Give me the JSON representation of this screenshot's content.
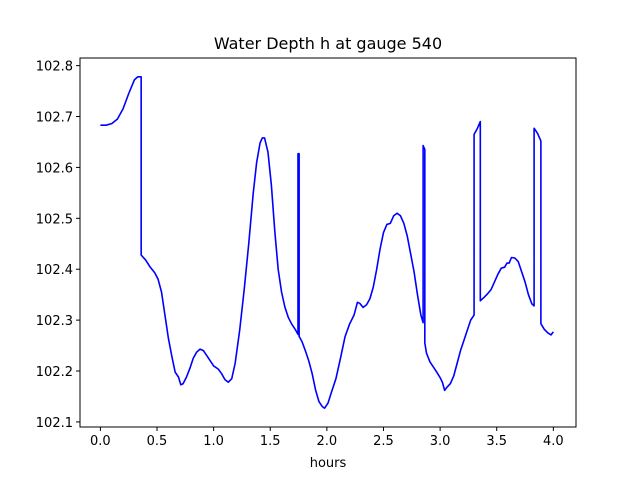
{
  "chart_data": {
    "type": "line",
    "title": "Water Depth h at gauge 540",
    "xlabel": "hours",
    "ylabel": "",
    "xlim": [
      -0.18,
      4.2
    ],
    "ylim": [
      102.09,
      102.815
    ],
    "x_ticks": [
      0.0,
      0.5,
      1.0,
      1.5,
      2.0,
      2.5,
      3.0,
      3.5,
      4.0
    ],
    "x_tick_labels": [
      "0.0",
      "0.5",
      "1.0",
      "1.5",
      "2.0",
      "2.5",
      "3.0",
      "3.5",
      "4.0"
    ],
    "y_ticks": [
      102.1,
      102.2,
      102.3,
      102.4,
      102.5,
      102.6,
      102.7,
      102.8
    ],
    "y_tick_labels": [
      "102.1",
      "102.2",
      "102.3",
      "102.4",
      "102.5",
      "102.6",
      "102.7",
      "102.8"
    ],
    "grid": false,
    "series": [
      {
        "color": "#0000ff",
        "points": [
          [
            0.0,
            102.683
          ],
          [
            0.05,
            102.683
          ],
          [
            0.1,
            102.686
          ],
          [
            0.15,
            102.695
          ],
          [
            0.2,
            102.715
          ],
          [
            0.25,
            102.745
          ],
          [
            0.3,
            102.772
          ],
          [
            0.33,
            102.778
          ],
          [
            0.36,
            102.778
          ],
          [
            0.36,
            102.428
          ],
          [
            0.4,
            102.418
          ],
          [
            0.44,
            102.404
          ],
          [
            0.48,
            102.393
          ],
          [
            0.51,
            102.38
          ],
          [
            0.54,
            102.355
          ],
          [
            0.57,
            102.31
          ],
          [
            0.6,
            102.265
          ],
          [
            0.63,
            102.23
          ],
          [
            0.66,
            102.198
          ],
          [
            0.69,
            102.188
          ],
          [
            0.71,
            102.173
          ],
          [
            0.73,
            102.175
          ],
          [
            0.76,
            102.188
          ],
          [
            0.79,
            102.205
          ],
          [
            0.82,
            102.225
          ],
          [
            0.85,
            102.237
          ],
          [
            0.88,
            102.243
          ],
          [
            0.91,
            102.24
          ],
          [
            0.94,
            102.23
          ],
          [
            0.97,
            102.22
          ],
          [
            1.0,
            102.21
          ],
          [
            1.04,
            102.204
          ],
          [
            1.07,
            102.195
          ],
          [
            1.1,
            102.183
          ],
          [
            1.13,
            102.178
          ],
          [
            1.16,
            102.185
          ],
          [
            1.19,
            102.215
          ],
          [
            1.23,
            102.28
          ],
          [
            1.27,
            102.36
          ],
          [
            1.31,
            102.45
          ],
          [
            1.35,
            102.55
          ],
          [
            1.38,
            102.61
          ],
          [
            1.41,
            102.648
          ],
          [
            1.43,
            102.658
          ],
          [
            1.45,
            102.658
          ],
          [
            1.48,
            102.63
          ],
          [
            1.51,
            102.565
          ],
          [
            1.54,
            102.475
          ],
          [
            1.57,
            102.4
          ],
          [
            1.6,
            102.355
          ],
          [
            1.63,
            102.325
          ],
          [
            1.66,
            102.305
          ],
          [
            1.69,
            102.292
          ],
          [
            1.72,
            102.282
          ],
          [
            1.745,
            102.272
          ],
          [
            1.745,
            102.627
          ],
          [
            1.755,
            102.627
          ],
          [
            1.755,
            102.268
          ],
          [
            1.78,
            102.258
          ],
          [
            1.81,
            102.24
          ],
          [
            1.84,
            102.22
          ],
          [
            1.87,
            102.195
          ],
          [
            1.9,
            102.163
          ],
          [
            1.93,
            102.14
          ],
          [
            1.96,
            102.13
          ],
          [
            1.98,
            102.127
          ],
          [
            2.01,
            102.137
          ],
          [
            2.04,
            102.158
          ],
          [
            2.08,
            102.185
          ],
          [
            2.12,
            102.225
          ],
          [
            2.16,
            102.267
          ],
          [
            2.2,
            102.292
          ],
          [
            2.24,
            102.31
          ],
          [
            2.27,
            102.335
          ],
          [
            2.29,
            102.333
          ],
          [
            2.32,
            102.325
          ],
          [
            2.35,
            102.33
          ],
          [
            2.38,
            102.342
          ],
          [
            2.41,
            102.365
          ],
          [
            2.44,
            102.4
          ],
          [
            2.47,
            102.44
          ],
          [
            2.5,
            102.472
          ],
          [
            2.53,
            102.488
          ],
          [
            2.56,
            102.49
          ],
          [
            2.59,
            102.505
          ],
          [
            2.62,
            102.51
          ],
          [
            2.65,
            102.505
          ],
          [
            2.68,
            102.49
          ],
          [
            2.71,
            102.465
          ],
          [
            2.74,
            102.43
          ],
          [
            2.77,
            102.395
          ],
          [
            2.8,
            102.35
          ],
          [
            2.83,
            102.31
          ],
          [
            2.85,
            102.295
          ],
          [
            2.85,
            102.643
          ],
          [
            2.865,
            102.635
          ],
          [
            2.865,
            102.255
          ],
          [
            2.88,
            102.235
          ],
          [
            2.91,
            102.218
          ],
          [
            2.94,
            102.208
          ],
          [
            2.97,
            102.198
          ],
          [
            3.0,
            102.187
          ],
          [
            3.02,
            102.178
          ],
          [
            3.04,
            102.162
          ],
          [
            3.06,
            102.168
          ],
          [
            3.09,
            102.175
          ],
          [
            3.12,
            102.19
          ],
          [
            3.15,
            102.215
          ],
          [
            3.18,
            102.24
          ],
          [
            3.21,
            102.26
          ],
          [
            3.24,
            102.28
          ],
          [
            3.27,
            102.3
          ],
          [
            3.3,
            102.31
          ],
          [
            3.3,
            102.665
          ],
          [
            3.33,
            102.677
          ],
          [
            3.355,
            102.69
          ],
          [
            3.355,
            102.338
          ],
          [
            3.39,
            102.345
          ],
          [
            3.42,
            102.352
          ],
          [
            3.45,
            102.36
          ],
          [
            3.48,
            102.375
          ],
          [
            3.51,
            102.39
          ],
          [
            3.54,
            102.402
          ],
          [
            3.57,
            102.404
          ],
          [
            3.59,
            102.412
          ],
          [
            3.61,
            102.412
          ],
          [
            3.63,
            102.423
          ],
          [
            3.66,
            102.422
          ],
          [
            3.69,
            102.415
          ],
          [
            3.72,
            102.395
          ],
          [
            3.75,
            102.375
          ],
          [
            3.78,
            102.35
          ],
          [
            3.81,
            102.332
          ],
          [
            3.83,
            102.328
          ],
          [
            3.83,
            102.677
          ],
          [
            3.86,
            102.667
          ],
          [
            3.89,
            102.652
          ],
          [
            3.89,
            102.293
          ],
          [
            3.92,
            102.282
          ],
          [
            3.95,
            102.275
          ],
          [
            3.98,
            102.271
          ],
          [
            4.0,
            102.277
          ]
        ]
      }
    ]
  }
}
